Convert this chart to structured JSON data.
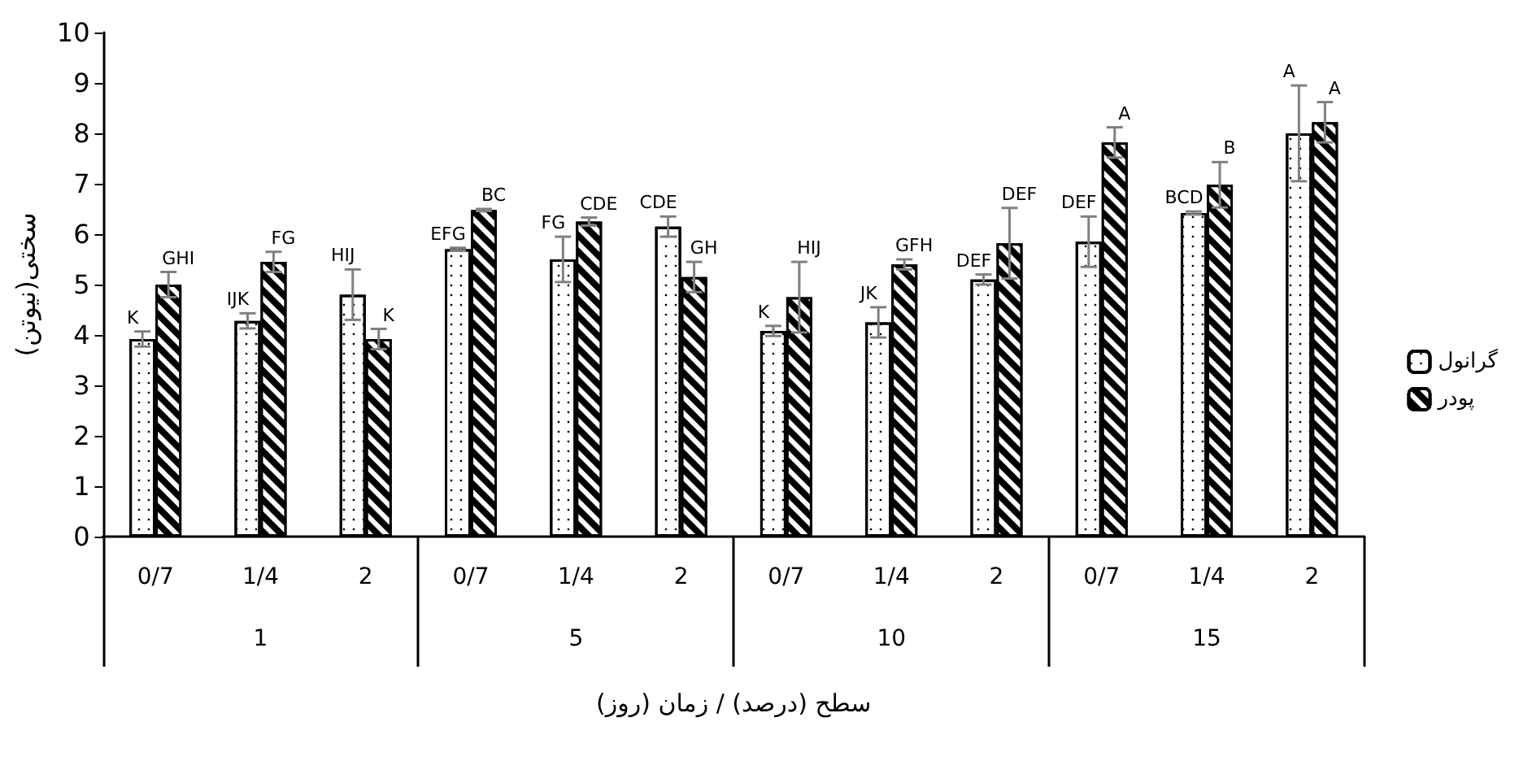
{
  "chart_data": {
    "type": "bar",
    "xlabel": "سطح (درصد) / زمان (روز)",
    "ylabel": "سختی(نیوتن)",
    "categories": [
      "0/7",
      "1/4",
      "2",
      "0/7",
      "1/4",
      "2",
      "0/7",
      "1/4",
      "2",
      "0/7",
      "1/4",
      "2"
    ],
    "annotations": [
      "1",
      "5",
      "10",
      "15"
    ],
    "series": [
      {
        "name": "گرانول",
        "color": "#ffffff",
        "values": [
          3.92,
          4.28,
          4.8,
          5.7,
          5.5,
          6.15,
          4.08,
          4.25,
          5.1,
          5.85,
          6.42,
          8.0
        ],
        "errors": [
          0.15,
          0.15,
          0.5,
          0.03,
          0.45,
          0.2,
          0.1,
          0.3,
          0.1,
          0.5,
          0.03,
          0.95
        ],
        "value_labels": [
          "K",
          "IJK",
          "HIJ",
          "EFG",
          "FG",
          "CDE",
          "K",
          "JK",
          "DEF",
          "DEF",
          "BCD",
          "A"
        ]
      },
      {
        "name": "پودر",
        "color": "#000000",
        "values": [
          5.0,
          5.45,
          3.92,
          6.48,
          6.25,
          5.15,
          4.75,
          5.4,
          5.82,
          7.82,
          6.98,
          8.22
        ],
        "errors": [
          0.25,
          0.2,
          0.2,
          0.02,
          0.08,
          0.3,
          0.7,
          0.1,
          0.7,
          0.3,
          0.45,
          0.4
        ],
        "value_labels": [
          "GHI",
          "FG",
          "K",
          "BC",
          "CDE",
          "GH",
          "HIJ",
          "GFH",
          "DEF",
          "A",
          "B",
          "A"
        ]
      }
    ],
    "ylim": [
      0,
      10
    ],
    "yticks": [
      0,
      1,
      2,
      3,
      4,
      5,
      6,
      7,
      8,
      9,
      10
    ],
    "grid": false,
    "legend": "right"
  }
}
